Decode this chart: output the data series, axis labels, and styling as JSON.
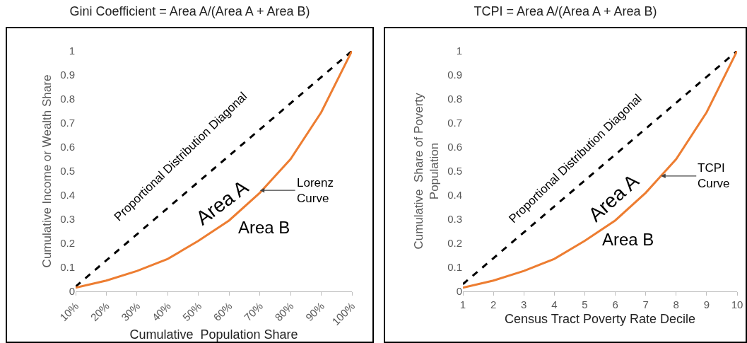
{
  "chart_data": [
    {
      "type": "line",
      "title": "Gini Coefficient = Area A/(Area A + Area B)",
      "xlabel": "Cumulative  Population Share",
      "ylabel": "Cumulative Income or Wealth Share",
      "categories": [
        "10%",
        "20%",
        "30%",
        "40%",
        "50%",
        "60%",
        "70%",
        "80%",
        "90%",
        "100%"
      ],
      "ylim": [
        0,
        1
      ],
      "yticks": [
        0,
        0.1,
        0.2,
        0.3,
        0.4,
        0.5,
        0.6,
        0.7,
        0.8,
        0.9,
        1
      ],
      "grid": false,
      "marker": "none",
      "series": [
        {
          "color": "#000000",
          "line_style": "dashed",
          "x": [
            "10%",
            "100%"
          ],
          "values": [
            0.02,
            1
          ]
        },
        {
          "color": "#ed7d31",
          "line_style": "solid",
          "values": [
            0.015,
            0.045,
            0.085,
            0.135,
            0.21,
            0.295,
            0.41,
            0.55,
            0.745,
            1
          ]
        }
      ],
      "annotations": [
        "Proportional Distribution Diagonal",
        "Area A",
        "Area B",
        {
          "text": "Lorenz\nCurve",
          "x": "70%",
          "y": 0.42
        }
      ]
    },
    {
      "type": "line",
      "title": "TCPI = Area A/(Area A + Area B)",
      "xlabel": "Census Tract Poverty Rate Decile",
      "ylabel": "Cumulative  Share of Poverty\nPopulation",
      "x": [
        1,
        2,
        3,
        4,
        5,
        6,
        7,
        8,
        9,
        10
      ],
      "xlim": [
        1,
        10
      ],
      "xticks": [
        1,
        2,
        3,
        4,
        5,
        6,
        7,
        8,
        9,
        10
      ],
      "ylim": [
        0,
        1
      ],
      "yticks": [
        0,
        0.1,
        0.2,
        0.3,
        0.4,
        0.5,
        0.6,
        0.7,
        0.8,
        0.9,
        1
      ],
      "grid": false,
      "marker": "none",
      "series": [
        {
          "color": "#000000",
          "line_style": "dashed",
          "x": [
            1,
            10
          ],
          "values": [
            0.03,
            1
          ]
        },
        {
          "color": "#ed7d31",
          "line_style": "solid",
          "values": [
            0.015,
            0.045,
            0.085,
            0.135,
            0.21,
            0.295,
            0.41,
            0.55,
            0.745,
            1
          ]
        }
      ],
      "annotations": [
        "Proportional Distribution Diagonal",
        "Area A",
        "Area B",
        {
          "text": "TCPI\nCurve",
          "x": 7.5,
          "y": 0.48
        }
      ]
    }
  ]
}
